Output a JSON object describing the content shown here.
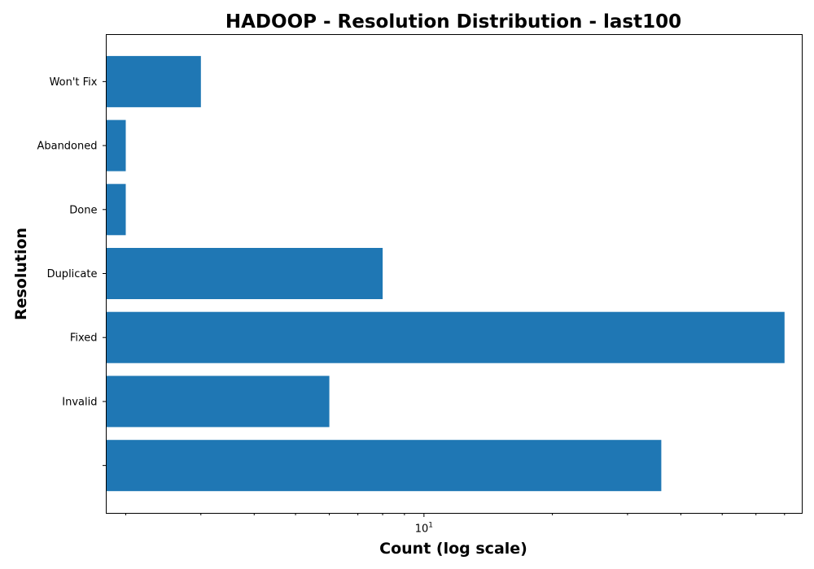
{
  "chart_data": {
    "type": "bar",
    "orientation": "horizontal",
    "title": "HADOOP - Resolution Distribution - last100",
    "xlabel": "Count (log scale)",
    "ylabel": "Resolution",
    "xscale": "log",
    "xlim": [
      1.8,
      77
    ],
    "x_major_tick_labels": [
      {
        "value": 10,
        "base": "10",
        "exponent": "1"
      }
    ],
    "categories": [
      "",
      "Invalid",
      "Fixed",
      "Duplicate",
      "Done",
      "Abandoned",
      "Won't Fix"
    ],
    "values": [
      36,
      6,
      70,
      8,
      2,
      2,
      3
    ],
    "bar_color": "#1f77b4",
    "grid": false,
    "legend": "none"
  }
}
